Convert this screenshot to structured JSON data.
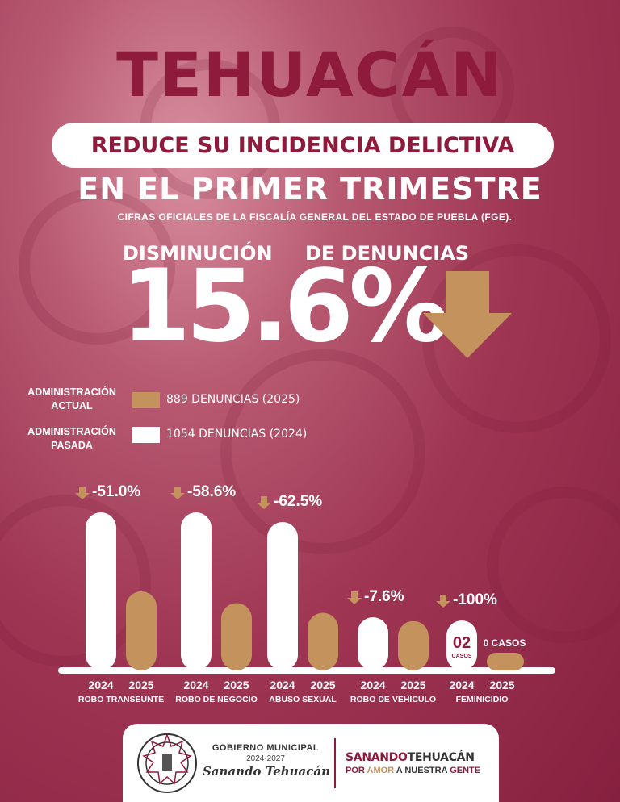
{
  "header": {
    "title": "TEHUACÁN",
    "subtitle": "REDUCE SU INCIDENCIA DELICTIVA",
    "subtitle2": "EN EL PRIMER TRIMESTRE",
    "source_note": "CIFRAS OFICIALES DE LA FISCALÍA GENERAL DEL ESTADO DE PUEBLA (FGE)."
  },
  "headline": {
    "label_left": "DISMINUCIÓN",
    "label_right": "DE DENUNCIAS",
    "value": "15.6%",
    "arrow_icon": "down-arrow-icon"
  },
  "legend": {
    "current_label_1": "ADMINISTRACIÓN",
    "current_label_2": "ACTUAL",
    "current_text": "889 DENUNCIAS (2025)",
    "past_label_1": "ADMINISTRACIÓN",
    "past_label_2": "PASADA",
    "past_text": "1054 DENUNCIAS (2024)"
  },
  "colors": {
    "brand": "#8e1b3c",
    "gold": "#c4925c",
    "white": "#ffffff"
  },
  "chart_data": {
    "type": "bar",
    "title": "",
    "xlabel": "",
    "ylabel": "",
    "series": [
      {
        "name": "2024",
        "color": "#ffffff",
        "values": [
          100,
          100,
          100,
          100,
          100
        ]
      },
      {
        "name": "2025",
        "color": "#c4925c",
        "values": [
          49,
          41.4,
          37.5,
          92.4,
          0
        ]
      }
    ],
    "groups": [
      {
        "category": "ROBO TRANSEUNTE",
        "change": "-51.0%",
        "years": [
          "2024",
          "2025"
        ]
      },
      {
        "category": "ROBO DE NEGOCIO",
        "change": "-58.6%",
        "years": [
          "2024",
          "2025"
        ]
      },
      {
        "category": "ABUSO SEXUAL",
        "change": "-62.5%",
        "years": [
          "2024",
          "2025"
        ]
      },
      {
        "category": "ROBO DE VEHÍCULO",
        "change": "-7.6%",
        "years": [
          "2024",
          "2025"
        ]
      },
      {
        "category": "FEMINICIDIO",
        "change": "-100%",
        "years": [
          "2024",
          "2025"
        ]
      }
    ],
    "annotations": {
      "feminicidio_2024_value": "02",
      "feminicidio_2024_unit": "CASOS",
      "feminicidio_2025_text": "0 CASOS"
    }
  },
  "footer": {
    "gov_label": "GOBIERNO MUNICIPAL",
    "years": "2024-2027",
    "slogan": "Sanando Tehuacán",
    "right_line1_a": "SANANDO",
    "right_line1_b": "TEHUACÁN",
    "right_line2_a": "POR",
    "right_line2_b": "AMOR",
    "right_line2_c": "A NUESTRA",
    "right_line2_d": "GENTE"
  }
}
